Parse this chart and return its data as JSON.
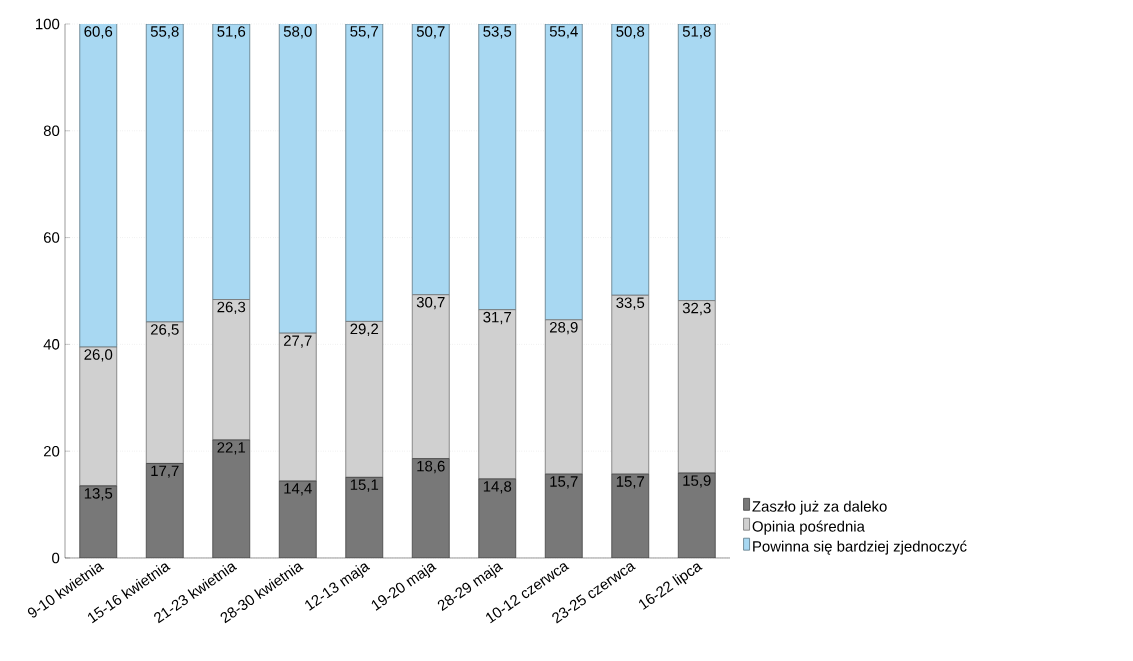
{
  "chart_data": {
    "type": "bar",
    "stacked": true,
    "categories": [
      "9-10 kwietnia",
      "15-16 kwietnia",
      "21-23 kwietnia",
      "28-30 kwietnia",
      "12-13 maja",
      "19-20 maja",
      "28-29 maja",
      "10-12 czerwca",
      "23-25 czerwca",
      "16-22 lipca"
    ],
    "series": [
      {
        "name": "Zaszło już za daleko",
        "color": "#787878",
        "values": [
          13.5,
          17.7,
          22.1,
          14.4,
          15.1,
          18.6,
          14.8,
          15.7,
          15.7,
          15.9
        ],
        "value_labels": [
          "13,5",
          "17,7",
          "22,1",
          "14,4",
          "15,1",
          "18,6",
          "14,8",
          "15,7",
          "15,7",
          "15,9"
        ]
      },
      {
        "name": "Opinia pośrednia",
        "color": "#d0d0d0",
        "values": [
          26.0,
          26.5,
          26.3,
          27.7,
          29.2,
          30.7,
          31.7,
          28.9,
          33.5,
          32.3
        ],
        "value_labels": [
          "26,0",
          "26,5",
          "26,3",
          "27,7",
          "29,2",
          "30,7",
          "31,7",
          "28,9",
          "33,5",
          "32,3"
        ]
      },
      {
        "name": "Powinna się bardziej zjednoczyć",
        "color": "#a8d8f2",
        "values": [
          60.6,
          55.8,
          51.6,
          58.0,
          55.7,
          50.7,
          53.5,
          55.4,
          50.8,
          51.8
        ],
        "value_labels": [
          "60,6",
          "55,8",
          "51,6",
          "58,0",
          "55,7",
          "50,7",
          "53,5",
          "55,4",
          "50,8",
          "51,8"
        ]
      }
    ],
    "ylim": [
      0,
      100
    ],
    "yticks": [
      0,
      20,
      40,
      60,
      80,
      100
    ],
    "grid": "y",
    "legend": "bottom right"
  }
}
